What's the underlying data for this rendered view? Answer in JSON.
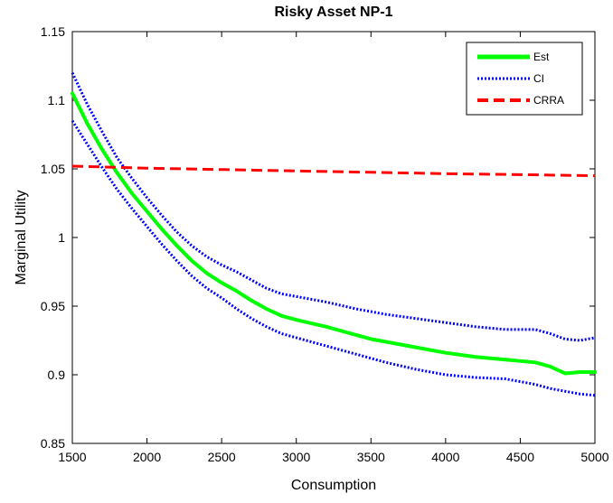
{
  "chart_data": {
    "type": "line",
    "title": "Risky Asset NP-1",
    "xlabel": "Consumption",
    "ylabel": "Marginal Utility",
    "xlim": [
      1500,
      5000
    ],
    "ylim": [
      0.85,
      1.15
    ],
    "x_ticks": [
      {
        "value": 1500,
        "label": "1500"
      },
      {
        "value": 2000,
        "label": "2000"
      },
      {
        "value": 2500,
        "label": "2500"
      },
      {
        "value": 3000,
        "label": "3000"
      },
      {
        "value": 3500,
        "label": "3500"
      },
      {
        "value": 4000,
        "label": "4000"
      },
      {
        "value": 4500,
        "label": "4500"
      },
      {
        "value": 5000,
        "label": "5000"
      }
    ],
    "y_ticks": [
      {
        "value": 0.85,
        "label": "0.85"
      },
      {
        "value": 0.9,
        "label": "0.9"
      },
      {
        "value": 0.95,
        "label": "0.95"
      },
      {
        "value": 1.0,
        "label": "1"
      },
      {
        "value": 1.05,
        "label": "1.05"
      },
      {
        "value": 1.1,
        "label": "1.1"
      },
      {
        "value": 1.15,
        "label": "1.15"
      }
    ],
    "grid": false,
    "legend_position": "top-right",
    "series": [
      {
        "name": "Est",
        "color": "#00ff00",
        "style": "solid",
        "x": [
          1500,
          1600,
          1700,
          1800,
          1900,
          2000,
          2100,
          2200,
          2300,
          2400,
          2500,
          2600,
          2700,
          2800,
          2900,
          3000,
          3200,
          3400,
          3500,
          3600,
          3800,
          4000,
          4200,
          4400,
          4600,
          4700,
          4800,
          4900,
          5000
        ],
        "y": [
          1.105,
          1.083,
          1.064,
          1.047,
          1.032,
          1.019,
          1.006,
          0.994,
          0.983,
          0.974,
          0.967,
          0.961,
          0.954,
          0.948,
          0.943,
          0.94,
          0.935,
          0.929,
          0.926,
          0.924,
          0.92,
          0.916,
          0.913,
          0.911,
          0.909,
          0.906,
          0.901,
          0.902,
          0.902
        ]
      },
      {
        "name": "CI",
        "color": "#0000ff",
        "style": "dotted",
        "x": [
          1500,
          1600,
          1700,
          1800,
          1900,
          2000,
          2100,
          2200,
          2300,
          2400,
          2500,
          2600,
          2700,
          2800,
          2900,
          3000,
          3200,
          3400,
          3500,
          3600,
          3800,
          4000,
          4200,
          4400,
          4600,
          4700,
          4800,
          4900,
          5000
        ],
        "y": [
          1.12,
          1.097,
          1.077,
          1.058,
          1.043,
          1.029,
          1.016,
          1.004,
          0.994,
          0.986,
          0.98,
          0.975,
          0.969,
          0.963,
          0.959,
          0.957,
          0.953,
          0.948,
          0.946,
          0.944,
          0.941,
          0.938,
          0.935,
          0.933,
          0.933,
          0.93,
          0.926,
          0.925,
          0.927
        ]
      },
      {
        "name": "",
        "color": "#0000ff",
        "style": "dotted",
        "x": [
          1500,
          1600,
          1700,
          1800,
          1900,
          2000,
          2100,
          2200,
          2300,
          2400,
          2500,
          2600,
          2700,
          2800,
          2900,
          3000,
          3200,
          3400,
          3500,
          3600,
          3800,
          4000,
          4200,
          4400,
          4600,
          4700,
          4800,
          4900,
          5000
        ],
        "y": [
          1.085,
          1.068,
          1.051,
          1.035,
          1.021,
          1.008,
          0.995,
          0.983,
          0.972,
          0.963,
          0.956,
          0.948,
          0.941,
          0.935,
          0.93,
          0.927,
          0.921,
          0.915,
          0.912,
          0.909,
          0.904,
          0.9,
          0.898,
          0.897,
          0.893,
          0.89,
          0.888,
          0.886,
          0.885
        ]
      },
      {
        "name": "CRRA",
        "color": "#ff0000",
        "style": "dashed",
        "x": [
          1500,
          2000,
          2500,
          3000,
          3500,
          4000,
          4500,
          5000
        ],
        "y": [
          1.052,
          1.0505,
          1.0495,
          1.0485,
          1.0475,
          1.0465,
          1.0458,
          1.045
        ]
      }
    ]
  }
}
